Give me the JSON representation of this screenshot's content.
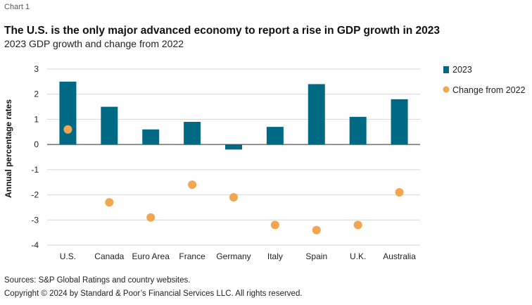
{
  "header": {
    "chart_label": "Chart 1"
  },
  "footer": {
    "sources": "Sources: S&P Global Ratings and country websites.",
    "copyright": "Copyright © 2024 by Standard & Poor’s Financial Services LLC. All rights reserved."
  },
  "colors": {
    "bar": "#006a85",
    "dot": "#f2a64f",
    "grid": "#d6d6d6",
    "axis": "#555555"
  },
  "chart_data": {
    "type": "bar",
    "title": "The U.S. is the only major advanced economy to report a rise in GDP growth in 2023",
    "subtitle": "2023 GDP growth and change from 2022",
    "ylabel": "Annual percentage rates",
    "xlabel": "",
    "ylim": [
      -4,
      3
    ],
    "yticks": [
      3,
      2,
      1,
      0,
      -1,
      -2,
      -3,
      -4
    ],
    "grid": true,
    "legend_position": "right",
    "categories": [
      "U.S.",
      "Canada",
      "Euro Area",
      "France",
      "Germany",
      "Italy",
      "Spain",
      "U.K.",
      "Australia"
    ],
    "series": [
      {
        "name": "2023",
        "type": "bar",
        "values": [
          2.5,
          1.5,
          0.6,
          0.9,
          -0.2,
          0.7,
          2.4,
          1.1,
          1.8
        ]
      },
      {
        "name": "Change from 2022",
        "type": "scatter",
        "values": [
          0.6,
          -2.3,
          -2.9,
          -1.6,
          -2.1,
          -3.2,
          -3.4,
          -3.2,
          -1.9
        ]
      }
    ]
  }
}
